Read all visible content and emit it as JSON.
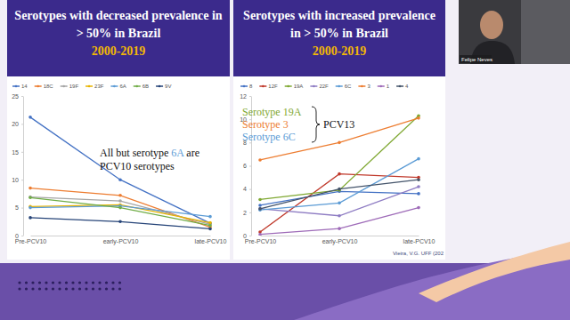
{
  "chart_data": [
    {
      "type": "line",
      "title": "Serotypes with decreased prevalence in > 50% in Brazil",
      "subtitle": "2000-2019",
      "categories": [
        "Pre-PCV10",
        "early-PCV10",
        "late-PCV10"
      ],
      "series": [
        {
          "name": "14",
          "color": "#4472c4",
          "values": [
            21.2,
            10.0,
            2.2
          ]
        },
        {
          "name": "18C",
          "color": "#ed7d31",
          "values": [
            8.5,
            7.2,
            1.5
          ]
        },
        {
          "name": "19F",
          "color": "#a5a5a5",
          "values": [
            6.9,
            6.2,
            2.0
          ]
        },
        {
          "name": "23F",
          "color": "#e8b400",
          "values": [
            5.2,
            5.5,
            2.3
          ]
        },
        {
          "name": "6A",
          "color": "#5b9bd5",
          "values": [
            5.0,
            5.3,
            3.4
          ]
        },
        {
          "name": "6B",
          "color": "#70ad47",
          "values": [
            6.8,
            5.0,
            1.8
          ]
        },
        {
          "name": "9V",
          "color": "#264478",
          "values": [
            3.2,
            2.5,
            1.2
          ]
        }
      ],
      "ylim": [
        0,
        25
      ],
      "yticks": [
        0,
        5,
        10,
        15,
        20,
        25
      ],
      "grid": false,
      "legend": "top",
      "marker": "circle",
      "annotation": [
        "All but serotype 6A are",
        "PCV10 serotypes"
      ]
    },
    {
      "type": "line",
      "title": "Serotypes with increased prevalence in > 50% in Brazil",
      "subtitle": "2000-2019",
      "categories": [
        "Pre-PCV10",
        "early-PCV10",
        "late-PCV10"
      ],
      "series": [
        {
          "name": "8",
          "color": "#4472c4",
          "values": [
            2.6,
            3.8,
            3.6
          ]
        },
        {
          "name": "12F",
          "color": "#c0392b",
          "values": [
            0.3,
            5.3,
            5.0
          ]
        },
        {
          "name": "19A",
          "color": "#7fa832",
          "values": [
            3.1,
            3.9,
            10.3
          ]
        },
        {
          "name": "22F",
          "color": "#8e7cc3",
          "values": [
            2.3,
            1.7,
            4.2
          ]
        },
        {
          "name": "6C",
          "color": "#5b9bd5",
          "values": [
            2.2,
            2.8,
            6.6
          ]
        },
        {
          "name": "3",
          "color": "#ed7d31",
          "values": [
            6.5,
            8.0,
            10.1
          ]
        },
        {
          "name": "1",
          "color": "#9e6bb8",
          "values": [
            0.1,
            0.6,
            2.4
          ]
        },
        {
          "name": "4",
          "color": "#44546a",
          "values": [
            2.3,
            4.0,
            4.8
          ]
        }
      ],
      "ylim": [
        0,
        12
      ],
      "yticks": [
        0,
        2,
        4,
        6,
        8,
        10,
        12
      ],
      "grid": false,
      "legend": "top",
      "marker": "circle",
      "annotation": [
        {
          "text": "Serotype 19A",
          "series": "19A"
        },
        {
          "text": "Serotype 3",
          "series": "3"
        },
        {
          "text": "Serotype 6C",
          "series": "6C"
        }
      ],
      "bracket_label": "PCV13"
    }
  ],
  "presenter": "Felipe Neves",
  "source": "Vieira, V.G. UFF (202"
}
